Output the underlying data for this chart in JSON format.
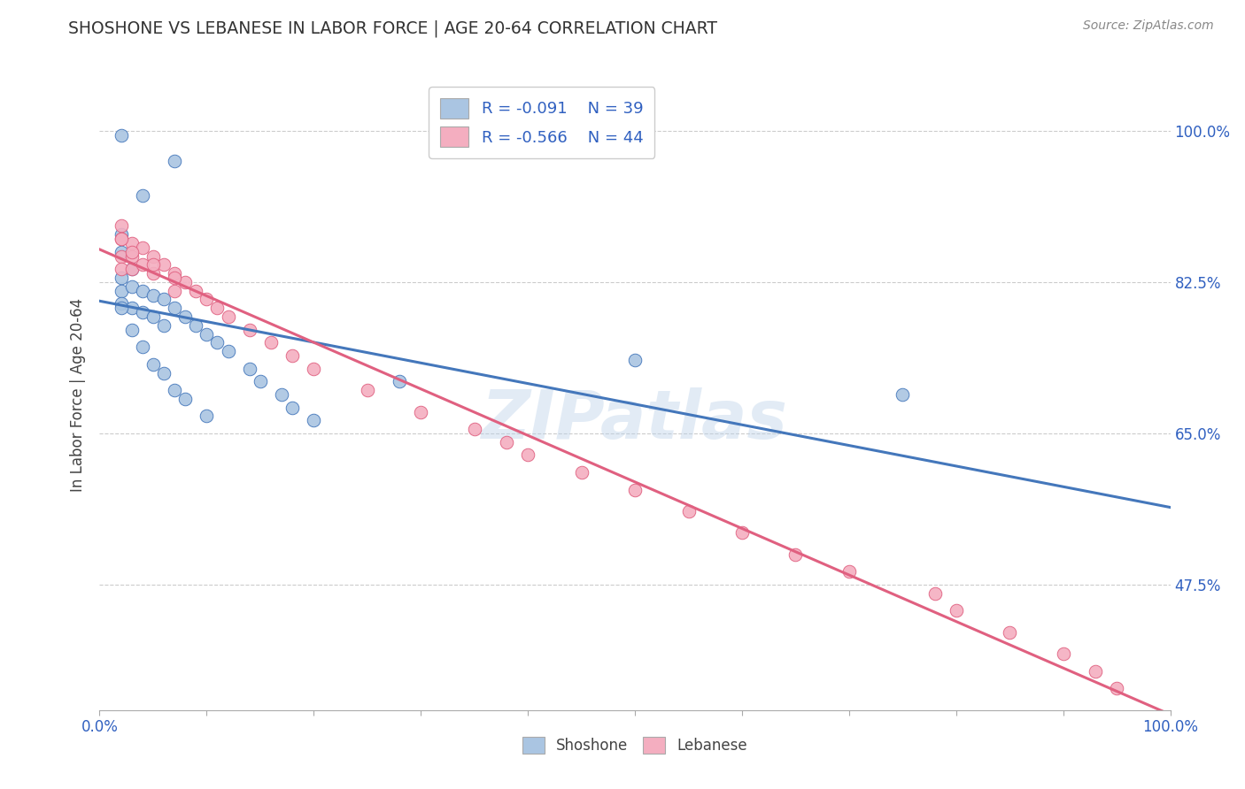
{
  "title": "SHOSHONE VS LEBANESE IN LABOR FORCE | AGE 20-64 CORRELATION CHART",
  "source_text": "Source: ZipAtlas.com",
  "ylabel": "In Labor Force | Age 20-64",
  "xlim": [
    0.0,
    1.0
  ],
  "ylim": [
    0.33,
    1.06
  ],
  "ytick_labels": [
    "47.5%",
    "65.0%",
    "82.5%",
    "100.0%"
  ],
  "ytick_values": [
    0.475,
    0.65,
    0.825,
    1.0
  ],
  "shoshone_color": "#aac5e2",
  "lebanese_color": "#f4aec0",
  "shoshone_line_color": "#4477bb",
  "lebanese_line_color": "#e06080",
  "legend_R_shoshone": "R = -0.091",
  "legend_N_shoshone": "N = 39",
  "legend_R_lebanese": "R = -0.566",
  "legend_N_lebanese": "N = 44",
  "watermark": "ZIPatlas",
  "shoshone_x": [
    0.02,
    0.07,
    0.04,
    0.02,
    0.02,
    0.03,
    0.02,
    0.02,
    0.02,
    0.03,
    0.03,
    0.04,
    0.04,
    0.05,
    0.05,
    0.06,
    0.06,
    0.07,
    0.08,
    0.09,
    0.1,
    0.11,
    0.12,
    0.14,
    0.15,
    0.17,
    0.18,
    0.2,
    0.28,
    0.02,
    0.03,
    0.04,
    0.05,
    0.06,
    0.07,
    0.08,
    0.1,
    0.5,
    0.75
  ],
  "shoshone_y": [
    0.995,
    0.965,
    0.925,
    0.88,
    0.86,
    0.84,
    0.83,
    0.815,
    0.8,
    0.82,
    0.795,
    0.815,
    0.79,
    0.81,
    0.785,
    0.805,
    0.775,
    0.795,
    0.785,
    0.775,
    0.765,
    0.755,
    0.745,
    0.725,
    0.71,
    0.695,
    0.68,
    0.665,
    0.71,
    0.795,
    0.77,
    0.75,
    0.73,
    0.72,
    0.7,
    0.69,
    0.67,
    0.735,
    0.695
  ],
  "lebanese_x": [
    0.02,
    0.02,
    0.02,
    0.02,
    0.03,
    0.03,
    0.03,
    0.04,
    0.04,
    0.05,
    0.05,
    0.06,
    0.07,
    0.07,
    0.08,
    0.09,
    0.1,
    0.11,
    0.12,
    0.14,
    0.16,
    0.18,
    0.2,
    0.25,
    0.3,
    0.35,
    0.38,
    0.4,
    0.45,
    0.5,
    0.55,
    0.6,
    0.65,
    0.7,
    0.78,
    0.8,
    0.85,
    0.9,
    0.93,
    0.95,
    0.02,
    0.03,
    0.05,
    0.07
  ],
  "lebanese_y": [
    0.89,
    0.875,
    0.855,
    0.84,
    0.87,
    0.855,
    0.84,
    0.865,
    0.845,
    0.855,
    0.835,
    0.845,
    0.835,
    0.815,
    0.825,
    0.815,
    0.805,
    0.795,
    0.785,
    0.77,
    0.755,
    0.74,
    0.725,
    0.7,
    0.675,
    0.655,
    0.64,
    0.625,
    0.605,
    0.585,
    0.56,
    0.535,
    0.51,
    0.49,
    0.465,
    0.445,
    0.42,
    0.395,
    0.375,
    0.355,
    0.875,
    0.86,
    0.845,
    0.83
  ],
  "background_color": "#ffffff",
  "grid_color": "#cccccc",
  "axis_color": "#3060c0",
  "title_color": "#333333",
  "legend_text_color": "#3060c0"
}
